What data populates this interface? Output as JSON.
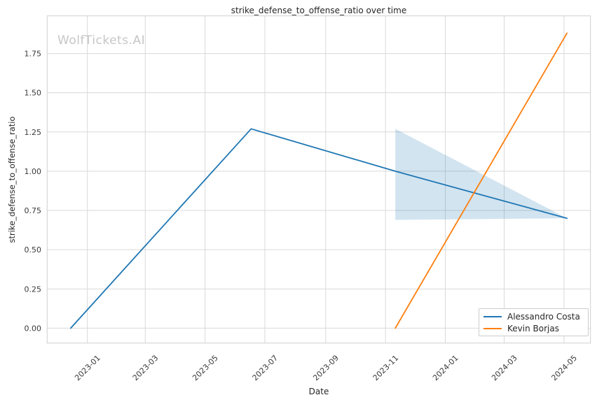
{
  "watermark": {
    "text": "WolfTickets.AI"
  },
  "chart": {
    "title": "strike_defense_to_offense_ratio over time",
    "xlabel": "Date",
    "ylabel": "strike_defense_to_offense_ratio"
  },
  "legend": {
    "position": "lower right",
    "items": [
      {
        "label": "Alessandro Costa",
        "color": "#1f77b4"
      },
      {
        "label": "Kevin Borjas",
        "color": "#ff7f0e"
      }
    ]
  },
  "chart_data": {
    "type": "line",
    "title": "strike_defense_to_offense_ratio over time",
    "xlabel": "Date",
    "ylabel": "strike_defense_to_offense_ratio",
    "grid": true,
    "legend_position": "lower right",
    "xlim": [
      "2022-11-21",
      "2024-05-28"
    ],
    "ylim": [
      -0.095,
      1.99
    ],
    "x_ticks": [
      {
        "date": "2023-01-01",
        "label": "2023-01"
      },
      {
        "date": "2023-03-01",
        "label": "2023-03"
      },
      {
        "date": "2023-05-01",
        "label": "2023-05"
      },
      {
        "date": "2023-07-01",
        "label": "2023-07"
      },
      {
        "date": "2023-09-01",
        "label": "2023-09"
      },
      {
        "date": "2023-11-01",
        "label": "2023-11"
      },
      {
        "date": "2024-01-01",
        "label": "2024-01"
      },
      {
        "date": "2024-03-01",
        "label": "2024-03"
      },
      {
        "date": "2024-05-01",
        "label": "2024-05"
      }
    ],
    "y_ticks": [
      {
        "value": 0.0,
        "label": "0.00"
      },
      {
        "value": 0.25,
        "label": "0.25"
      },
      {
        "value": 0.5,
        "label": "0.50"
      },
      {
        "value": 0.75,
        "label": "0.75"
      },
      {
        "value": 1.0,
        "label": "1.00"
      },
      {
        "value": 1.25,
        "label": "1.25"
      },
      {
        "value": 1.5,
        "label": "1.50"
      },
      {
        "value": 1.75,
        "label": "1.75"
      }
    ],
    "series": [
      {
        "name": "Alessandro Costa",
        "color": "#1f77b4",
        "points": [
          {
            "date": "2022-12-15",
            "value": 0.0
          },
          {
            "date": "2023-06-17",
            "value": 1.27
          },
          {
            "date": "2023-11-11",
            "value": 1.0
          },
          {
            "date": "2024-05-04",
            "value": 0.7
          }
        ]
      },
      {
        "name": "Kevin Borjas",
        "color": "#ff7f0e",
        "points": [
          {
            "date": "2023-11-11",
            "value": 0.0
          },
          {
            "date": "2024-05-04",
            "value": 1.88
          }
        ]
      }
    ],
    "band": {
      "series": "Alessandro Costa",
      "color": "#1f77b4",
      "opacity": 0.2,
      "upper": [
        {
          "date": "2023-11-11",
          "value": 1.27
        },
        {
          "date": "2024-05-04",
          "value": 0.7
        }
      ],
      "lower": [
        {
          "date": "2023-11-11",
          "value": 0.69
        },
        {
          "date": "2024-05-04",
          "value": 0.7
        }
      ]
    },
    "styles": {
      "background": "#ffffff",
      "grid_color": "#d9d9d9",
      "spine_color": "#cfcfcf",
      "tick_label_color": "#3a3a3a",
      "text_color": "#262626",
      "watermark_color": "#c6c6c6",
      "line_width": 1.8
    }
  }
}
